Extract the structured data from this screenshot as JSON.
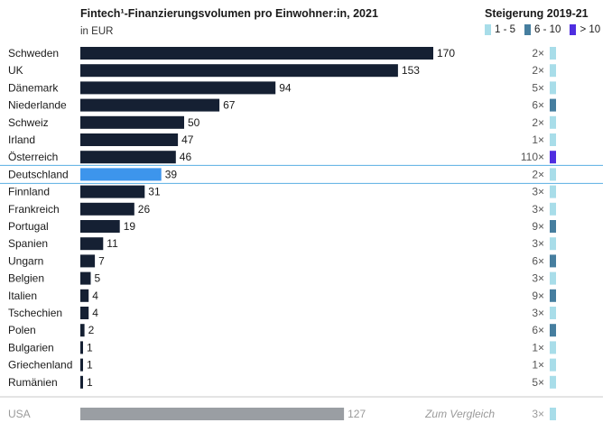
{
  "colors": {
    "bar": "#152033",
    "highlight": "#3d95ec",
    "reference": "#9a9ea3",
    "growth_low": "#a8dde9",
    "growth_mid": "#467e9f",
    "growth_high": "#4f2ee0",
    "highlight_line": "#58aee3",
    "separator": "#c9c9c9"
  },
  "chart_data": {
    "type": "bar",
    "orientation": "horizontal",
    "title": "Fintech¹-Finanzierungsvolumen pro Einwohner:in, 2021",
    "subtitle": "in EUR",
    "right_title": "Steigerung 2019-21",
    "legend": [
      {
        "label": "1 - 5",
        "color": "#a8dde9"
      },
      {
        "label": "6 - 10",
        "color": "#467e9f"
      },
      {
        "label": "> 10",
        "color": "#4f2ee0"
      }
    ],
    "categories": [
      "Schweden",
      "UK",
      "Dänemark",
      "Niederlande",
      "Schweiz",
      "Irland",
      "Österreich",
      "Deutschland",
      "Finnland",
      "Frankreich",
      "Portugal",
      "Spanien",
      "Ungarn",
      "Belgien",
      "Italien",
      "Tschechien",
      "Polen",
      "Bulgarien",
      "Griechenland",
      "Rumänien"
    ],
    "values": [
      170,
      153,
      94,
      67,
      50,
      47,
      46,
      39,
      31,
      26,
      19,
      11,
      7,
      5,
      4,
      4,
      2,
      1,
      1,
      1
    ],
    "growth": [
      "2×",
      "2×",
      "5×",
      "6×",
      "2×",
      "1×",
      "110×",
      "2×",
      "3×",
      "3×",
      "9×",
      "3×",
      "6×",
      "3×",
      "9×",
      "3×",
      "6×",
      "1×",
      "1×",
      "5×"
    ],
    "growth_level": [
      1,
      1,
      1,
      2,
      1,
      1,
      3,
      1,
      1,
      1,
      2,
      1,
      2,
      1,
      2,
      1,
      2,
      1,
      1,
      1
    ],
    "highlight": "Deutschland",
    "xlim": [
      0,
      170
    ],
    "reference": {
      "label": "USA",
      "value": 127,
      "growth": "3×",
      "growth_level": 1,
      "note": "Zum Vergleich"
    }
  }
}
